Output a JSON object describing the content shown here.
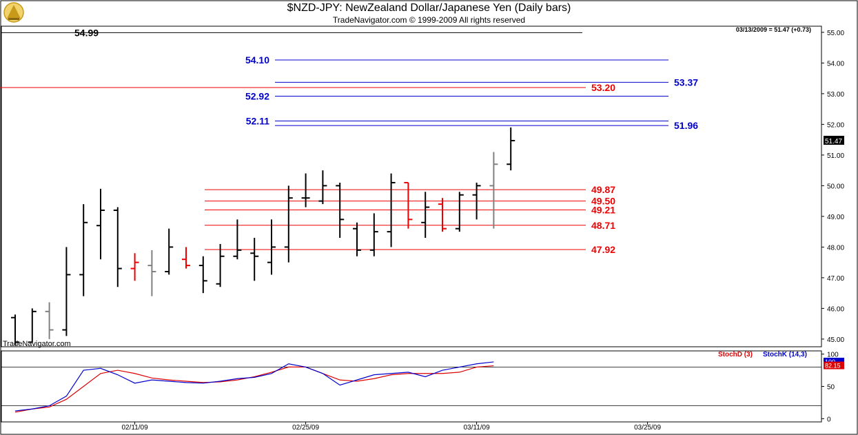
{
  "header": {
    "title": "$NZD-JPY:  NewZealand Dollar/Japanese Yen  (Daily bars)",
    "subtitle": "TradeNavigator.com © 1999-2009 All rights reserved",
    "readout": "03/13/2009 = 51.47 (+0.73)",
    "watermark": "TradeNavigator.com"
  },
  "colors": {
    "up": "#000000",
    "down": "#ee0000",
    "neutral": "#808080",
    "fib_blue": "#0000cc",
    "fib_red": "#ee0000",
    "stoch_d": "#dd0000",
    "stoch_k": "#0000cc"
  },
  "chart_data": [
    {
      "type": "ohlc",
      "ylim": [
        44.75,
        55.2
      ],
      "y_ticks": [
        "45.00",
        "46.00",
        "47.00",
        "48.00",
        "49.00",
        "50.00",
        "51.00",
        "52.00",
        "53.00",
        "54.00",
        "55.00"
      ],
      "x_labels": [
        {
          "label": "02/11/09",
          "index": 7
        },
        {
          "label": "02/25/09",
          "index": 17
        },
        {
          "label": "03/11/09",
          "index": 27
        },
        {
          "label": "03/25/09",
          "index": 37
        }
      ],
      "last_value_label": "51.47",
      "bars": [
        {
          "o": 45.7,
          "h": 45.8,
          "l": 44.8,
          "c": 44.9,
          "color": "up"
        },
        {
          "o": 44.9,
          "h": 46.0,
          "l": 44.9,
          "c": 45.9,
          "color": "up"
        },
        {
          "o": 45.9,
          "h": 46.2,
          "l": 45.0,
          "c": 45.3,
          "color": "neutral"
        },
        {
          "o": 45.3,
          "h": 48.0,
          "l": 45.1,
          "c": 47.1,
          "color": "up"
        },
        {
          "o": 47.1,
          "h": 49.4,
          "l": 46.4,
          "c": 48.8,
          "color": "up"
        },
        {
          "o": 48.7,
          "h": 49.9,
          "l": 47.6,
          "c": 49.2,
          "color": "up"
        },
        {
          "o": 49.2,
          "h": 49.3,
          "l": 46.7,
          "c": 47.3,
          "color": "up"
        },
        {
          "o": 47.3,
          "h": 47.8,
          "l": 46.9,
          "c": 47.5,
          "color": "down"
        },
        {
          "o": 47.4,
          "h": 47.9,
          "l": 46.4,
          "c": 47.2,
          "color": "neutral"
        },
        {
          "o": 47.2,
          "h": 48.6,
          "l": 47.1,
          "c": 48.0,
          "color": "up"
        },
        {
          "o": 47.6,
          "h": 48.0,
          "l": 47.3,
          "c": 47.4,
          "color": "down"
        },
        {
          "o": 47.4,
          "h": 47.7,
          "l": 46.5,
          "c": 46.9,
          "color": "up"
        },
        {
          "o": 46.8,
          "h": 48.1,
          "l": 46.7,
          "c": 47.7,
          "color": "up"
        },
        {
          "o": 47.7,
          "h": 48.9,
          "l": 47.6,
          "c": 47.9,
          "color": "up"
        },
        {
          "o": 47.8,
          "h": 48.3,
          "l": 46.9,
          "c": 47.7,
          "color": "up"
        },
        {
          "o": 47.5,
          "h": 48.9,
          "l": 47.1,
          "c": 48.0,
          "color": "up"
        },
        {
          "o": 48.0,
          "h": 50.0,
          "l": 47.5,
          "c": 49.6,
          "color": "up"
        },
        {
          "o": 49.6,
          "h": 50.4,
          "l": 49.3,
          "c": 49.6,
          "color": "up"
        },
        {
          "o": 49.5,
          "h": 50.5,
          "l": 49.4,
          "c": 50.0,
          "color": "up"
        },
        {
          "o": 50.0,
          "h": 50.1,
          "l": 48.3,
          "c": 48.9,
          "color": "up"
        },
        {
          "o": 48.6,
          "h": 48.8,
          "l": 47.7,
          "c": 47.9,
          "color": "up"
        },
        {
          "o": 47.9,
          "h": 49.1,
          "l": 47.7,
          "c": 48.5,
          "color": "up"
        },
        {
          "o": 48.5,
          "h": 50.4,
          "l": 48.0,
          "c": 50.1,
          "color": "up"
        },
        {
          "o": 50.1,
          "h": 50.1,
          "l": 48.6,
          "c": 48.9,
          "color": "down"
        },
        {
          "o": 48.8,
          "h": 49.8,
          "l": 48.3,
          "c": 49.3,
          "color": "up"
        },
        {
          "o": 49.4,
          "h": 49.6,
          "l": 48.5,
          "c": 48.6,
          "color": "down"
        },
        {
          "o": 48.6,
          "h": 49.8,
          "l": 48.5,
          "c": 49.7,
          "color": "up"
        },
        {
          "o": 49.7,
          "h": 50.1,
          "l": 48.9,
          "c": 50.0,
          "color": "up"
        },
        {
          "o": 50.0,
          "h": 51.1,
          "l": 48.6,
          "c": 50.7,
          "color": "neutral"
        },
        {
          "o": 50.7,
          "h": 51.9,
          "l": 50.5,
          "c": 51.47,
          "color": "up"
        }
      ],
      "levels": [
        {
          "value": 54.99,
          "label": "54.99",
          "color": "up",
          "x0": 80,
          "x1": 100,
          "label_pos": "right"
        },
        {
          "value": 54.1,
          "label": "54.10",
          "color": "fib_blue",
          "x0": 399,
          "x1": 970,
          "label_pos": "left"
        },
        {
          "value": 53.37,
          "label": "53.37",
          "color": "fib_blue",
          "x0": 399,
          "x1": 970,
          "label_pos": "right"
        },
        {
          "value": 53.2,
          "label": "53.20",
          "color": "fib_red",
          "x0": 0,
          "x1": 850,
          "label_pos": "right"
        },
        {
          "value": 52.92,
          "label": "52.92",
          "color": "fib_blue",
          "x0": 399,
          "x1": 970,
          "label_pos": "left"
        },
        {
          "value": 52.11,
          "label": "52.11",
          "color": "fib_blue",
          "x0": 399,
          "x1": 970,
          "label_pos": "left"
        },
        {
          "value": 51.96,
          "label": "51.96",
          "color": "fib_blue",
          "x0": 399,
          "x1": 970,
          "label_pos": "right"
        },
        {
          "value": 49.87,
          "label": "49.87",
          "color": "fib_red",
          "x0": 297,
          "x1": 850,
          "label_pos": "right"
        },
        {
          "value": 49.5,
          "label": "49.50",
          "color": "fib_red",
          "x0": 297,
          "x1": 850,
          "label_pos": "right"
        },
        {
          "value": 49.21,
          "label": "49.21",
          "color": "fib_red",
          "x0": 297,
          "x1": 850,
          "label_pos": "right"
        },
        {
          "value": 48.71,
          "label": "48.71",
          "color": "fib_red",
          "x0": 297,
          "x1": 850,
          "label_pos": "right"
        },
        {
          "value": 47.92,
          "label": "47.92",
          "color": "fib_red",
          "x0": 297,
          "x1": 850,
          "label_pos": "right"
        }
      ]
    },
    {
      "type": "line",
      "ylim": [
        -5,
        105
      ],
      "y_ticks": [
        "0",
        "50",
        "100"
      ],
      "ref_lines": [
        80,
        20
      ],
      "series": [
        {
          "name": "StochD (3)",
          "color": "stoch_d",
          "values": [
            10,
            15,
            18,
            30,
            50,
            70,
            75,
            70,
            63,
            60,
            58,
            56,
            57,
            60,
            65,
            72,
            80,
            80,
            70,
            60,
            58,
            62,
            68,
            70,
            70,
            70,
            72,
            80,
            82
          ]
        },
        {
          "name": "StochK (14,3)",
          "color": "stoch_k",
          "values": [
            12,
            15,
            20,
            35,
            75,
            78,
            68,
            55,
            60,
            58,
            56,
            55,
            58,
            62,
            64,
            70,
            85,
            80,
            70,
            52,
            60,
            68,
            70,
            72,
            65,
            75,
            80,
            85,
            88
          ]
        }
      ],
      "last_value_labels": [
        "100",
        "82.15"
      ]
    }
  ]
}
